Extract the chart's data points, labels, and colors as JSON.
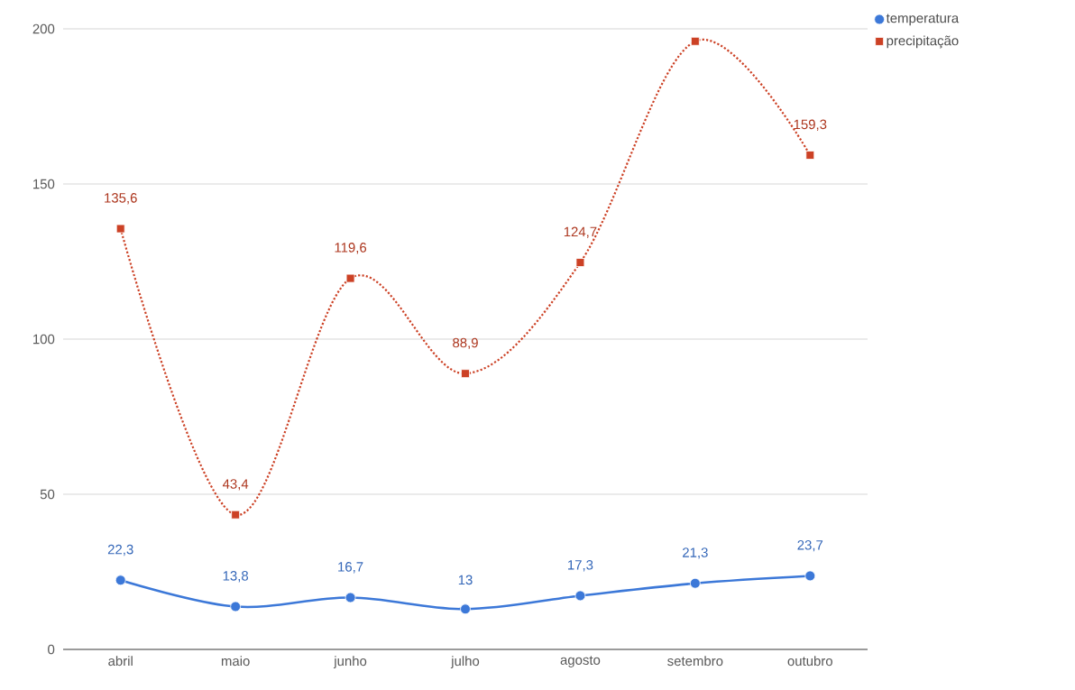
{
  "chart_data": {
    "type": "line",
    "categories": [
      "abril",
      "maio",
      "junho",
      "julho",
      "agosto",
      "setembro",
      "outubro"
    ],
    "series": [
      {
        "name": "temperatura",
        "color": "#3c78d8",
        "values": [
          22.3,
          13.8,
          16.7,
          13,
          17.3,
          21.3,
          23.7
        ],
        "marker": "circle",
        "line_style": "solid",
        "value_labels": [
          "22,3",
          "13,8",
          "16,7",
          "13",
          "17,3",
          "21,3",
          "23,7"
        ]
      },
      {
        "name": "precipitação",
        "color": "#cc4125",
        "values": [
          135.6,
          43.4,
          119.6,
          88.9,
          124.7,
          196,
          159.3
        ],
        "marker": "square",
        "line_style": "dotted",
        "value_labels": [
          "135,6",
          "43,4",
          "119,6",
          "88,9",
          "124,7",
          null,
          "159,3"
        ]
      }
    ],
    "ylim": [
      0,
      200
    ],
    "yticks": [
      0,
      50,
      100,
      150,
      200
    ],
    "grid": "y",
    "legend": "top right"
  }
}
